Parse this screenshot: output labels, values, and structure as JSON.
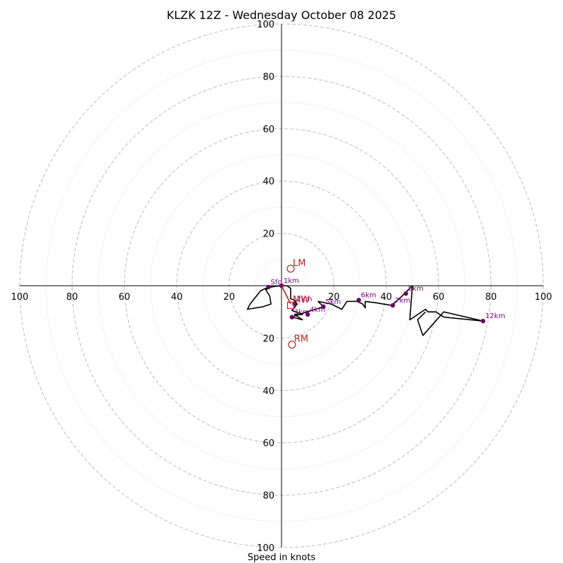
{
  "chart_data": {
    "type": "hodograph",
    "title": "KLZK 12Z - Wednesday October 08 2025",
    "xlabel": "Speed in knots",
    "range_knots": 100,
    "ring_major_values": [
      20,
      40,
      60,
      80,
      100
    ],
    "ring_minor_values": [
      10,
      30,
      50,
      70,
      90
    ],
    "tick_values": [
      20,
      40,
      60,
      80,
      100
    ],
    "colors": {
      "grid": "#bbbbbb",
      "minor_grid": "#cccccc",
      "trace": "#000000",
      "height_marker": "#6b006b",
      "height_label": "#800080",
      "storm_motion": "#c0221e"
    },
    "trace_uv": [
      [
        0,
        0
      ],
      [
        -5,
        -0.5
      ],
      [
        -8,
        -2
      ],
      [
        -12,
        -7
      ],
      [
        -13,
        -9
      ],
      [
        -7,
        -8
      ],
      [
        -4,
        -7
      ],
      [
        -4.5,
        -4
      ],
      [
        -6,
        -1.5
      ],
      [
        -4,
        -0.5
      ],
      [
        -1,
        0
      ],
      [
        2,
        0
      ],
      [
        3.5,
        -1
      ],
      [
        3.5,
        -5
      ],
      [
        5,
        -5.5
      ],
      [
        6,
        -7
      ],
      [
        4,
        -9.5
      ],
      [
        8,
        -11
      ],
      [
        5,
        -11
      ],
      [
        8,
        -13
      ],
      [
        4,
        -12
      ],
      [
        8,
        -10.5
      ],
      [
        13,
        -9
      ],
      [
        16,
        -8
      ],
      [
        14,
        -6
      ],
      [
        19,
        -7
      ],
      [
        23,
        -9
      ],
      [
        25,
        -6
      ],
      [
        29,
        -6
      ],
      [
        31,
        -7
      ],
      [
        32,
        -8.5
      ],
      [
        32,
        -6
      ],
      [
        36,
        -6.5
      ],
      [
        42,
        -7.5
      ],
      [
        45,
        -5
      ],
      [
        47,
        -3
      ],
      [
        50,
        0
      ],
      [
        49,
        -13
      ],
      [
        55,
        -9
      ],
      [
        56,
        -10
      ],
      [
        59,
        -10
      ],
      [
        62,
        -12
      ],
      [
        77,
        -13.5
      ],
      [
        62,
        -10
      ],
      [
        54,
        -19
      ],
      [
        52,
        -13
      ],
      [
        55,
        -10
      ]
    ],
    "height_markers": [
      {
        "label": "Sfc",
        "u": -5,
        "v": -0.5
      },
      {
        "label": "1km",
        "u": 0,
        "v": 0
      },
      {
        "label": "2km",
        "u": 5,
        "v": -7
      },
      {
        "label": "3km",
        "u": 4,
        "v": -12
      },
      {
        "label": "4km",
        "u": 10,
        "v": -11
      },
      {
        "label": "5km",
        "u": 16,
        "v": -8
      },
      {
        "label": "6km",
        "u": 29.5,
        "v": -5.5
      },
      {
        "label": "7km",
        "u": 42.5,
        "v": -7.5
      },
      {
        "label": "8km",
        "u": 47.5,
        "v": -3
      },
      {
        "label": "12km",
        "u": 77,
        "v": -13.5
      }
    ],
    "storm_motion": [
      {
        "label": "LM",
        "u": 3.5,
        "v": 6.5
      },
      {
        "label": "MW",
        "u": 3.5,
        "v": -7.5
      },
      {
        "label": "RM",
        "u": 4,
        "v": -22.5
      }
    ]
  }
}
